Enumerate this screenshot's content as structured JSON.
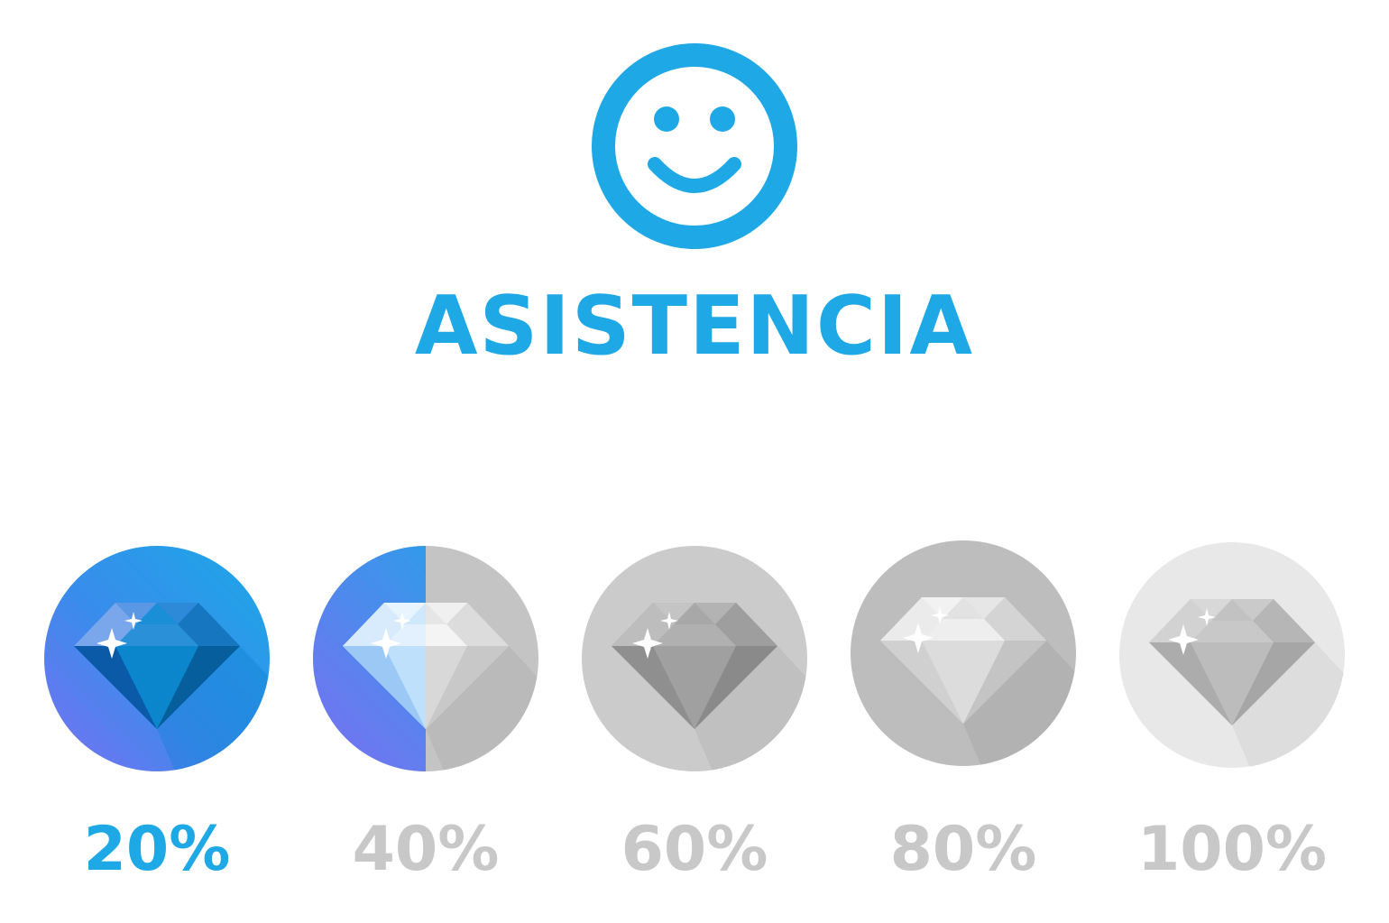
{
  "title": "ASISTENCIA",
  "icon": "smiley-face-icon",
  "colors": {
    "accent": "#1fa8e6",
    "inactive_text": "#c8c8c8"
  },
  "levels": [
    {
      "label": "20%",
      "icon": "diamond-icon",
      "state": "achieved",
      "fill_fraction": 1.0
    },
    {
      "label": "40%",
      "icon": "diamond-icon",
      "state": "in-progress",
      "fill_fraction": 0.5
    },
    {
      "label": "60%",
      "icon": "diamond-icon",
      "state": "locked",
      "fill_fraction": 0.0
    },
    {
      "label": "80%",
      "icon": "diamond-icon",
      "state": "locked",
      "fill_fraction": 0.0
    },
    {
      "label": "100%",
      "icon": "diamond-icon",
      "state": "locked",
      "fill_fraction": 0.0
    }
  ]
}
